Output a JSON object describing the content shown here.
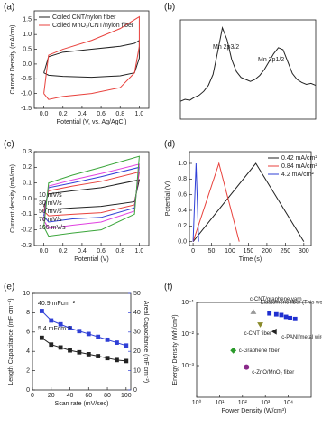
{
  "chart_data": [
    {
      "type": "line",
      "label": "(a)",
      "xlabel": "Potential (V, vs. Ag/AgCl)",
      "ylabel": "Current Density (mA/cm)",
      "xlim": [
        -0.1,
        1.1
      ],
      "xticks": [
        {
          "value": 0,
          "label": "0.0"
        },
        {
          "value": 0.2,
          "label": "0.2"
        },
        {
          "value": 0.4,
          "label": "0.4"
        },
        {
          "value": 0.6,
          "label": "0.6"
        },
        {
          "value": 0.8,
          "label": "0.8"
        },
        {
          "value": 1,
          "label": "1.0"
        }
      ],
      "ylim": [
        -1.5,
        1.8
      ],
      "yticks": [
        {
          "value": -1.5,
          "label": "-1.5"
        },
        {
          "value": -1,
          "label": "-1.0"
        },
        {
          "value": -0.5,
          "label": "-0.5"
        },
        {
          "value": 0,
          "label": "0.0"
        },
        {
          "value": 0.5,
          "label": "0.5"
        },
        {
          "value": 1,
          "label": "1.0"
        },
        {
          "value": 1.5,
          "label": "1.5"
        }
      ],
      "legend": "upper left",
      "x": [
        0,
        0.05,
        0.2,
        0.5,
        0.8,
        0.95,
        1.0,
        1.0,
        0.95,
        0.8,
        0.5,
        0.2,
        0.05,
        0
      ],
      "series": [
        {
          "name": "Coiled CNT/nylon fiber",
          "color": "#222222",
          "values": [
            -0.3,
            0.25,
            0.4,
            0.5,
            0.6,
            0.7,
            0.8,
            0.2,
            -0.3,
            -0.4,
            -0.45,
            -0.42,
            -0.38,
            -0.3
          ]
        },
        {
          "name": "Coiled MnO₂/CNT/nylon fiber",
          "color": "#e8413c",
          "values": [
            -1.0,
            0.3,
            0.5,
            0.8,
            1.2,
            1.5,
            1.6,
            0.6,
            -0.3,
            -0.8,
            -1.0,
            -1.1,
            -1.2,
            -1.0
          ]
        }
      ]
    },
    {
      "type": "line",
      "label": "(b)",
      "annotations": [
        {
          "text": "Mn 2p3/2",
          "color": "#222222"
        },
        {
          "text": "Mn 2p1/2",
          "color": "#222222"
        }
      ],
      "xlim": [
        0,
        29
      ],
      "ylim": [
        0,
        100
      ],
      "x": [
        0,
        1,
        2,
        3,
        4,
        5,
        6,
        7,
        8,
        9,
        10,
        11,
        12,
        13,
        14,
        15,
        16,
        17,
        18,
        19,
        20,
        21,
        22,
        23,
        24,
        25,
        26,
        27,
        28,
        29
      ],
      "series": [
        {
          "name": null,
          "color": "#222222",
          "values": [
            18,
            20,
            19,
            22,
            24,
            28,
            34,
            45,
            68,
            92,
            80,
            60,
            48,
            42,
            40,
            38,
            40,
            44,
            50,
            58,
            66,
            72,
            70,
            58,
            46,
            40,
            37,
            35,
            36,
            34
          ]
        }
      ]
    },
    {
      "type": "line",
      "label": "(c)",
      "xlabel": "Potential (V)",
      "ylabel": "Current density (mA/cm)",
      "xlim": [
        -0.1,
        1.1
      ],
      "xticks": [
        {
          "value": 0,
          "label": "0.0"
        },
        {
          "value": 0.2,
          "label": "0.2"
        },
        {
          "value": 0.4,
          "label": "0.4"
        },
        {
          "value": 0.6,
          "label": "0.6"
        },
        {
          "value": 0.8,
          "label": "0.8"
        },
        {
          "value": 1,
          "label": "1.0"
        }
      ],
      "ylim": [
        -0.3,
        0.3
      ],
      "yticks": [
        {
          "value": -0.3,
          "label": "-0.3"
        },
        {
          "value": -0.2,
          "label": "-0.2"
        },
        {
          "value": -0.1,
          "label": "-0.1"
        },
        {
          "value": 0,
          "label": "0.0"
        },
        {
          "value": 0.1,
          "label": "0.1"
        },
        {
          "value": 0.2,
          "label": "0.2"
        },
        {
          "value": 0.3,
          "label": "0.3"
        }
      ],
      "legend": "lower left",
      "legend_text_colored": true,
      "x": [
        0,
        0.05,
        0.3,
        0.6,
        1.0,
        0.95,
        0.6,
        0.3,
        0.05,
        0
      ],
      "series": [
        {
          "name": "10 mV/s",
          "color": "#222222",
          "values": [
            -0.05,
            0.03,
            0.05,
            0.07,
            0.12,
            -0.02,
            -0.05,
            -0.06,
            -0.07,
            -0.05
          ]
        },
        {
          "name": "30 mV/s",
          "color": "#e8413c",
          "values": [
            -0.08,
            0.05,
            0.08,
            0.11,
            0.17,
            -0.04,
            -0.09,
            -0.1,
            -0.11,
            -0.08
          ]
        },
        {
          "name": "50 mV/s",
          "color": "#2f3fd6",
          "values": [
            -0.11,
            0.07,
            0.1,
            0.14,
            0.2,
            -0.06,
            -0.12,
            -0.13,
            -0.15,
            -0.11
          ]
        },
        {
          "name": "70 mV/s",
          "color": "#e040e0",
          "values": [
            -0.14,
            0.08,
            0.12,
            0.16,
            0.22,
            -0.08,
            -0.15,
            -0.17,
            -0.19,
            -0.14
          ]
        },
        {
          "name": "100 mV/s",
          "color": "#3aa53a",
          "values": [
            -0.18,
            0.1,
            0.15,
            0.2,
            0.27,
            -0.1,
            -0.2,
            -0.22,
            -0.24,
            -0.18
          ]
        }
      ]
    },
    {
      "type": "line",
      "label": "(d)",
      "xlabel": "Time (s)",
      "ylabel": "Potential (V)",
      "xlim": [
        -10,
        320
      ],
      "xticks": [
        0,
        50,
        100,
        150,
        200,
        250,
        300
      ],
      "ylim": [
        -0.05,
        1.15
      ],
      "yticks": [
        {
          "value": 0,
          "label": "0.0"
        },
        {
          "value": 0.2,
          "label": "0.2"
        },
        {
          "value": 0.4,
          "label": "0.4"
        },
        {
          "value": 0.6,
          "label": "0.6"
        },
        {
          "value": 0.8,
          "label": "0.8"
        },
        {
          "value": 1,
          "label": "1.0"
        }
      ],
      "legend": "upper right",
      "series": [
        {
          "name": "0.42 mA/cm²",
          "color": "#222222",
          "x": [
            0,
            170,
            300
          ],
          "values": [
            0,
            1,
            0
          ]
        },
        {
          "name": "0.84 mA/cm²",
          "color": "#e8413c",
          "x": [
            0,
            70,
            125
          ],
          "values": [
            0,
            1,
            0
          ]
        },
        {
          "name": "4.2 mA/cm²",
          "color": "#2f3fd6",
          "x": [
            0,
            8,
            15
          ],
          "values": [
            0,
            1,
            0
          ]
        }
      ]
    },
    {
      "type": "line",
      "label": "(e)",
      "xlabel": "Scan rate (mV/sec)",
      "ylabel": "Length Capacitance (mF cm⁻¹)",
      "y2label": "Areal Capacitance (mF cm⁻²)",
      "y2color": "#2f3fd6",
      "xlim": [
        0,
        105
      ],
      "xticks": [
        0,
        20,
        40,
        60,
        80,
        100
      ],
      "ylim": [
        0,
        10
      ],
      "yticks": [
        0,
        2,
        4,
        6,
        8,
        10
      ],
      "y2lim": [
        0,
        50
      ],
      "y2ticks": [
        0,
        10,
        20,
        30,
        40,
        50
      ],
      "annotations": [
        {
          "text": "40.9 mFcm⁻²",
          "color": "#2f3fd6"
        },
        {
          "text": "5.4 mFcm⁻¹",
          "color": "#222222"
        }
      ],
      "x": [
        10,
        20,
        30,
        40,
        50,
        60,
        70,
        80,
        90,
        100
      ],
      "series": [
        {
          "name": null,
          "color": "#222222",
          "marker": "square",
          "values": [
            5.4,
            4.7,
            4.4,
            4.1,
            3.9,
            3.7,
            3.5,
            3.3,
            3.1,
            3.0
          ]
        },
        {
          "name": null,
          "color": "#2f3fd6",
          "marker": "square",
          "axis": "y2",
          "values": [
            40.9,
            36,
            34,
            32,
            30.5,
            29,
            27.5,
            26,
            24.5,
            23
          ]
        }
      ]
    },
    {
      "type": "scatter",
      "label": "(f)",
      "xlabel": "Power Density (W/cm³)",
      "ylabel": "Energy Density (Wh/cm³)",
      "xlog": true,
      "ylog": true,
      "xlim": [
        1,
        100000
      ],
      "xticks": [
        {
          "value": 1,
          "label": "10⁰"
        },
        {
          "value": 10,
          "label": "10¹"
        },
        {
          "value": 100,
          "label": "10²"
        },
        {
          "value": 1000,
          "label": "10³"
        },
        {
          "value": 10000,
          "label": "10⁴"
        }
      ],
      "ylim": [
        0.0001,
        0.1
      ],
      "yticks": [
        {
          "value": 0.001,
          "label": "10⁻³"
        },
        {
          "value": 0.01,
          "label": "10⁻²"
        },
        {
          "value": 0.1,
          "label": "10⁻¹"
        }
      ],
      "series": [
        {
          "name": "Elastomeric fiber (This work)",
          "color": "#1f2fd0",
          "marker": "square",
          "x": [
            1500,
            3000,
            5000,
            8000,
            12000,
            20000
          ],
          "values": [
            0.045,
            0.042,
            0.04,
            0.035,
            0.032,
            0.03
          ]
        },
        {
          "name": "c-CNT/graphene yarn",
          "color": "#999999",
          "marker": "triangle",
          "x": [
            300
          ],
          "values": [
            0.05
          ]
        },
        {
          "name": "c-CNT fiber",
          "color": "#8a8a2a",
          "marker": "down",
          "x": [
            600
          ],
          "values": [
            0.02
          ]
        },
        {
          "name": "c-PANI/metal wire",
          "color": "#222222",
          "marker": "left",
          "x": [
            2500
          ],
          "values": [
            0.012
          ]
        },
        {
          "name": "c-Graphene fiber",
          "color": "#2a9a2a",
          "marker": "diamond",
          "x": [
            40
          ],
          "values": [
            0.003
          ]
        },
        {
          "name": "c-ZnO/MnO₂ fiber",
          "color": "#8a2a8a",
          "marker": "circle",
          "x": [
            150
          ],
          "values": [
            0.0009
          ]
        }
      ]
    }
  ]
}
